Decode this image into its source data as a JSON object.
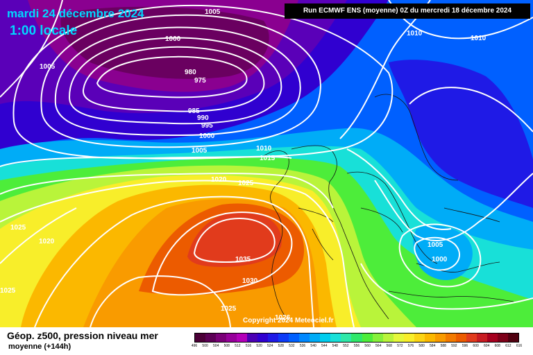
{
  "header": {
    "date": "mardi 24 décembre 2024",
    "time": "1:00 locale",
    "run": "Run ECMWF ENS (moyenne) 0Z du mercredi 18 décembre 2024"
  },
  "copyright": "Copyright 2024 Meteociel.fr",
  "footer": {
    "title": "Géop. z500, pression niveau mer",
    "subtitle": "moyenne   (+144h)"
  },
  "legend": {
    "values": [
      "496",
      "500",
      "504",
      "508",
      "512",
      "516",
      "520",
      "524",
      "528",
      "532",
      "536",
      "540",
      "544",
      "548",
      "552",
      "556",
      "560",
      "564",
      "568",
      "572",
      "576",
      "580",
      "584",
      "588",
      "592",
      "596",
      "600",
      "604",
      "608",
      "612",
      "616"
    ],
    "colors": [
      "#4b0037",
      "#5c0055",
      "#7a0077",
      "#96009a",
      "#b300b8",
      "#4b00b4",
      "#3000d0",
      "#1f1ae6",
      "#0d3bf7",
      "#0060ff",
      "#0088ff",
      "#00acf7",
      "#00cdee",
      "#18e0d8",
      "#2ee8a8",
      "#2fe86a",
      "#4ded3a",
      "#86f03a",
      "#b9f43a",
      "#e5f83a",
      "#f8ee2a",
      "#fbd414",
      "#fbb800",
      "#f99b00",
      "#f37a00",
      "#ec5b00",
      "#e13b1c",
      "#c81c22",
      "#a6001e",
      "#7d0018",
      "#50000f"
    ]
  },
  "isobars": [
    "1005",
    "1000",
    "980",
    "975",
    "985",
    "990",
    "995",
    "1000",
    "1005",
    "1010",
    "1015",
    "1020",
    "1025",
    "1025",
    "1020",
    "1010",
    "1010",
    "1005",
    "1000",
    "1035",
    "1030",
    "1025",
    "1026",
    "1025",
    "1005"
  ]
}
